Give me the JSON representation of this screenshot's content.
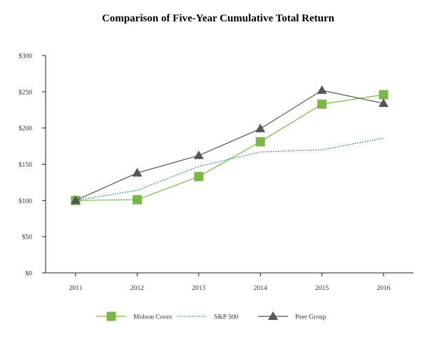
{
  "chart_data": {
    "type": "line",
    "title": "Comparison of Five-Year Cumulative Total Return",
    "xlabel": "",
    "ylabel": "",
    "categories": [
      "2011",
      "2012",
      "2013",
      "2014",
      "2015",
      "2016"
    ],
    "y_ticks": [
      "$0",
      "$50",
      "$100",
      "$150",
      "$200",
      "$250",
      "$300"
    ],
    "ylim": [
      0,
      300
    ],
    "grid": false,
    "legend_position": "bottom",
    "series": [
      {
        "name": "Molson Coors",
        "values": [
          100,
          101,
          133,
          181,
          233,
          246
        ],
        "color": "#7ab648",
        "marker": "square",
        "line": "solid"
      },
      {
        "name": "S&P 500",
        "values": [
          100,
          114,
          147,
          167,
          170,
          186
        ],
        "color": "#2f7f96",
        "marker": "none",
        "line": "dotted"
      },
      {
        "name": "Peer Group",
        "values": [
          100,
          138,
          162,
          199,
          252,
          234
        ],
        "color": "#555555",
        "marker": "triangle",
        "line": "solid"
      }
    ]
  }
}
